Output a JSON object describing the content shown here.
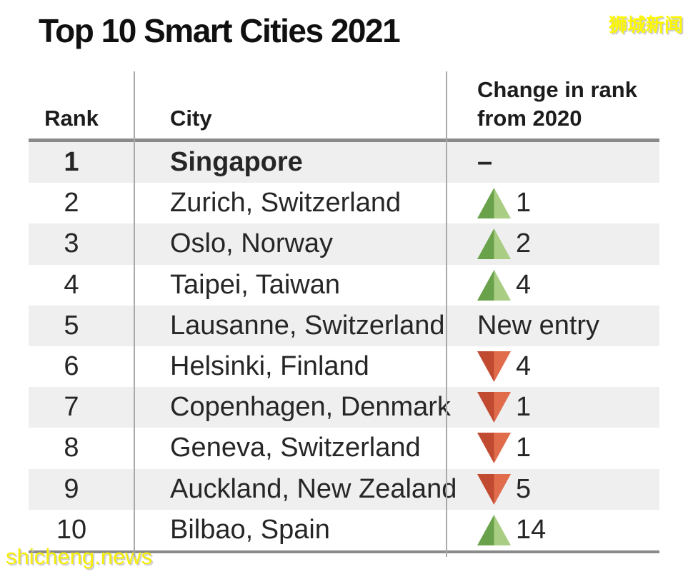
{
  "title": "Top 10 Smart Cities 2021",
  "watermarks": {
    "top": "狮城新闻",
    "bottom": "shicheng.news"
  },
  "table": {
    "header": {
      "rank": "Rank",
      "city": "City",
      "change_line1": "Change in rank",
      "change_line2": "from 2020"
    },
    "rows": [
      {
        "rank": "1",
        "city": "Singapore",
        "bold": true,
        "change": {
          "dir": "same",
          "label": "–"
        }
      },
      {
        "rank": "2",
        "city": "Zurich, Switzerland",
        "bold": false,
        "change": {
          "dir": "up",
          "value": "1"
        }
      },
      {
        "rank": "3",
        "city": "Oslo, Norway",
        "bold": false,
        "change": {
          "dir": "up",
          "value": "2"
        }
      },
      {
        "rank": "4",
        "city": "Taipei, Taiwan",
        "bold": false,
        "change": {
          "dir": "up",
          "value": "4"
        }
      },
      {
        "rank": "5",
        "city": "Lausanne, Switzerland",
        "bold": false,
        "change": {
          "dir": "new",
          "label": "New entry"
        }
      },
      {
        "rank": "6",
        "city": "Helsinki, Finland",
        "bold": false,
        "change": {
          "dir": "down",
          "value": "4"
        }
      },
      {
        "rank": "7",
        "city": "Copenhagen, Denmark",
        "bold": false,
        "change": {
          "dir": "down",
          "value": "1"
        }
      },
      {
        "rank": "8",
        "city": "Geneva, Switzerland",
        "bold": false,
        "change": {
          "dir": "down",
          "value": "1"
        }
      },
      {
        "rank": "9",
        "city": "Auckland, New Zealand",
        "bold": false,
        "change": {
          "dir": "down",
          "value": "5"
        }
      },
      {
        "rank": "10",
        "city": "Bilbao, Spain",
        "bold": false,
        "change": {
          "dir": "up",
          "value": "14"
        }
      }
    ]
  },
  "colors": {
    "up_dark": "#69a24b",
    "up_light": "#a9cd82",
    "down_dark": "#c04b31",
    "down_light": "#e06c4c",
    "row_shade": "#efefef",
    "rule": "#8a8a8a",
    "divider": "#a9a9a9",
    "text": "#262626",
    "watermark_yellow": "#fdf800"
  },
  "chart_data": {
    "type": "table",
    "title": "Top 10 Smart Cities 2021",
    "columns": [
      "Rank",
      "City",
      "Change in rank from 2020"
    ],
    "rows": [
      [
        1,
        "Singapore",
        "0 (no change)"
      ],
      [
        2,
        "Zurich, Switzerland",
        "+1"
      ],
      [
        3,
        "Oslo, Norway",
        "+2"
      ],
      [
        4,
        "Taipei, Taiwan",
        "+4"
      ],
      [
        5,
        "Lausanne, Switzerland",
        "New entry"
      ],
      [
        6,
        "Helsinki, Finland",
        "-4"
      ],
      [
        7,
        "Copenhagen, Denmark",
        "-1"
      ],
      [
        8,
        "Geneva, Switzerland",
        "-1"
      ],
      [
        9,
        "Auckland, New Zealand",
        "-5"
      ],
      [
        10,
        "Bilbao, Spain",
        "+14"
      ]
    ]
  }
}
